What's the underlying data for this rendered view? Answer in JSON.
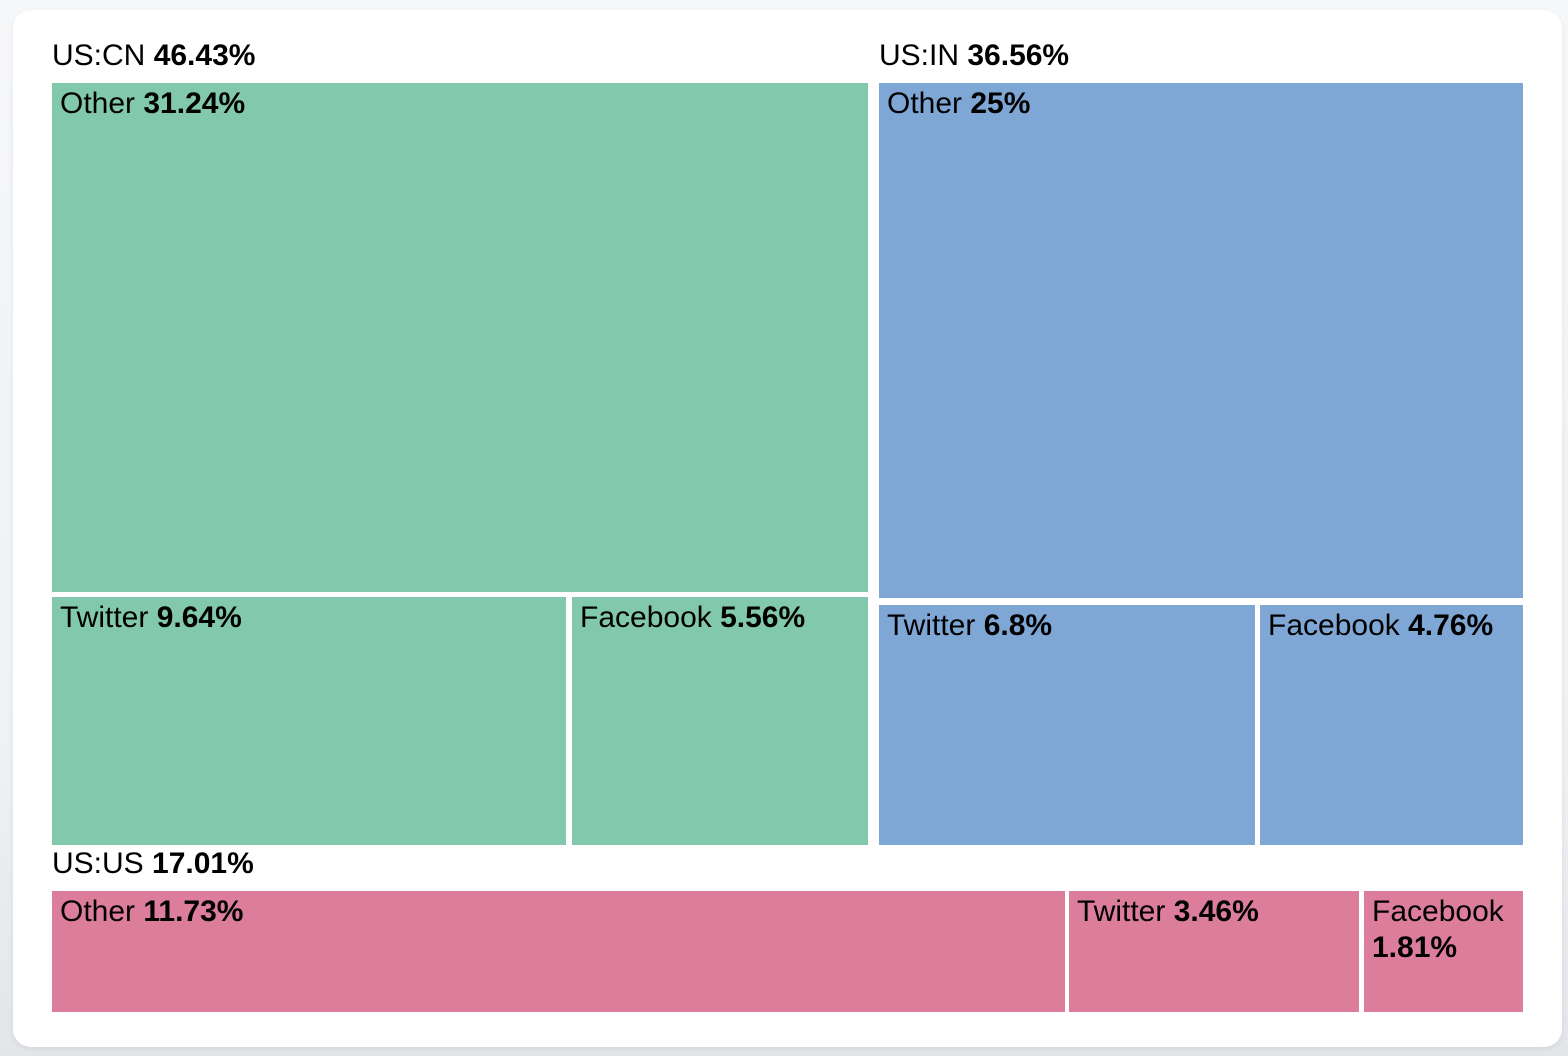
{
  "chart_data": {
    "type": "treemap",
    "title": "",
    "unit": "%",
    "legend_position": "none",
    "label_format": "name + bold percent",
    "groups": [
      {
        "label": "US:CN",
        "share_label": "46.43%",
        "value": 46.43,
        "color": "#81c8ad",
        "children": [
          {
            "label": "Other",
            "share_label": "31.24%",
            "value": 31.24
          },
          {
            "label": "Twitter",
            "share_label": "9.64%",
            "value": 9.64
          },
          {
            "label": "Facebook",
            "share_label": "5.56%",
            "value": 5.56
          }
        ]
      },
      {
        "label": "US:IN",
        "share_label": "36.56%",
        "value": 36.56,
        "color": "#7fa7d6",
        "children": [
          {
            "label": "Other",
            "share_label": "25%",
            "value": 25
          },
          {
            "label": "Twitter",
            "share_label": "6.8%",
            "value": 6.8
          },
          {
            "label": "Facebook",
            "share_label": "4.76%",
            "value": 4.76
          }
        ]
      },
      {
        "label": "US:US",
        "share_label": "17.01%",
        "value": 17.01,
        "color": "#dd7d9c",
        "children": [
          {
            "label": "Other",
            "share_label": "11.73%",
            "value": 11.73
          },
          {
            "label": "Twitter",
            "share_label": "3.46%",
            "value": 3.46
          },
          {
            "label": "Facebook",
            "share_label": "1.81%",
            "value": 1.81
          }
        ]
      }
    ]
  },
  "colors": {
    "green": "#81c8ad",
    "blue": "#7fa7d6",
    "pink": "#dd7d9c",
    "card_bg": "#ffffff",
    "page_bg": "#eff1f4",
    "text": "#000000"
  }
}
